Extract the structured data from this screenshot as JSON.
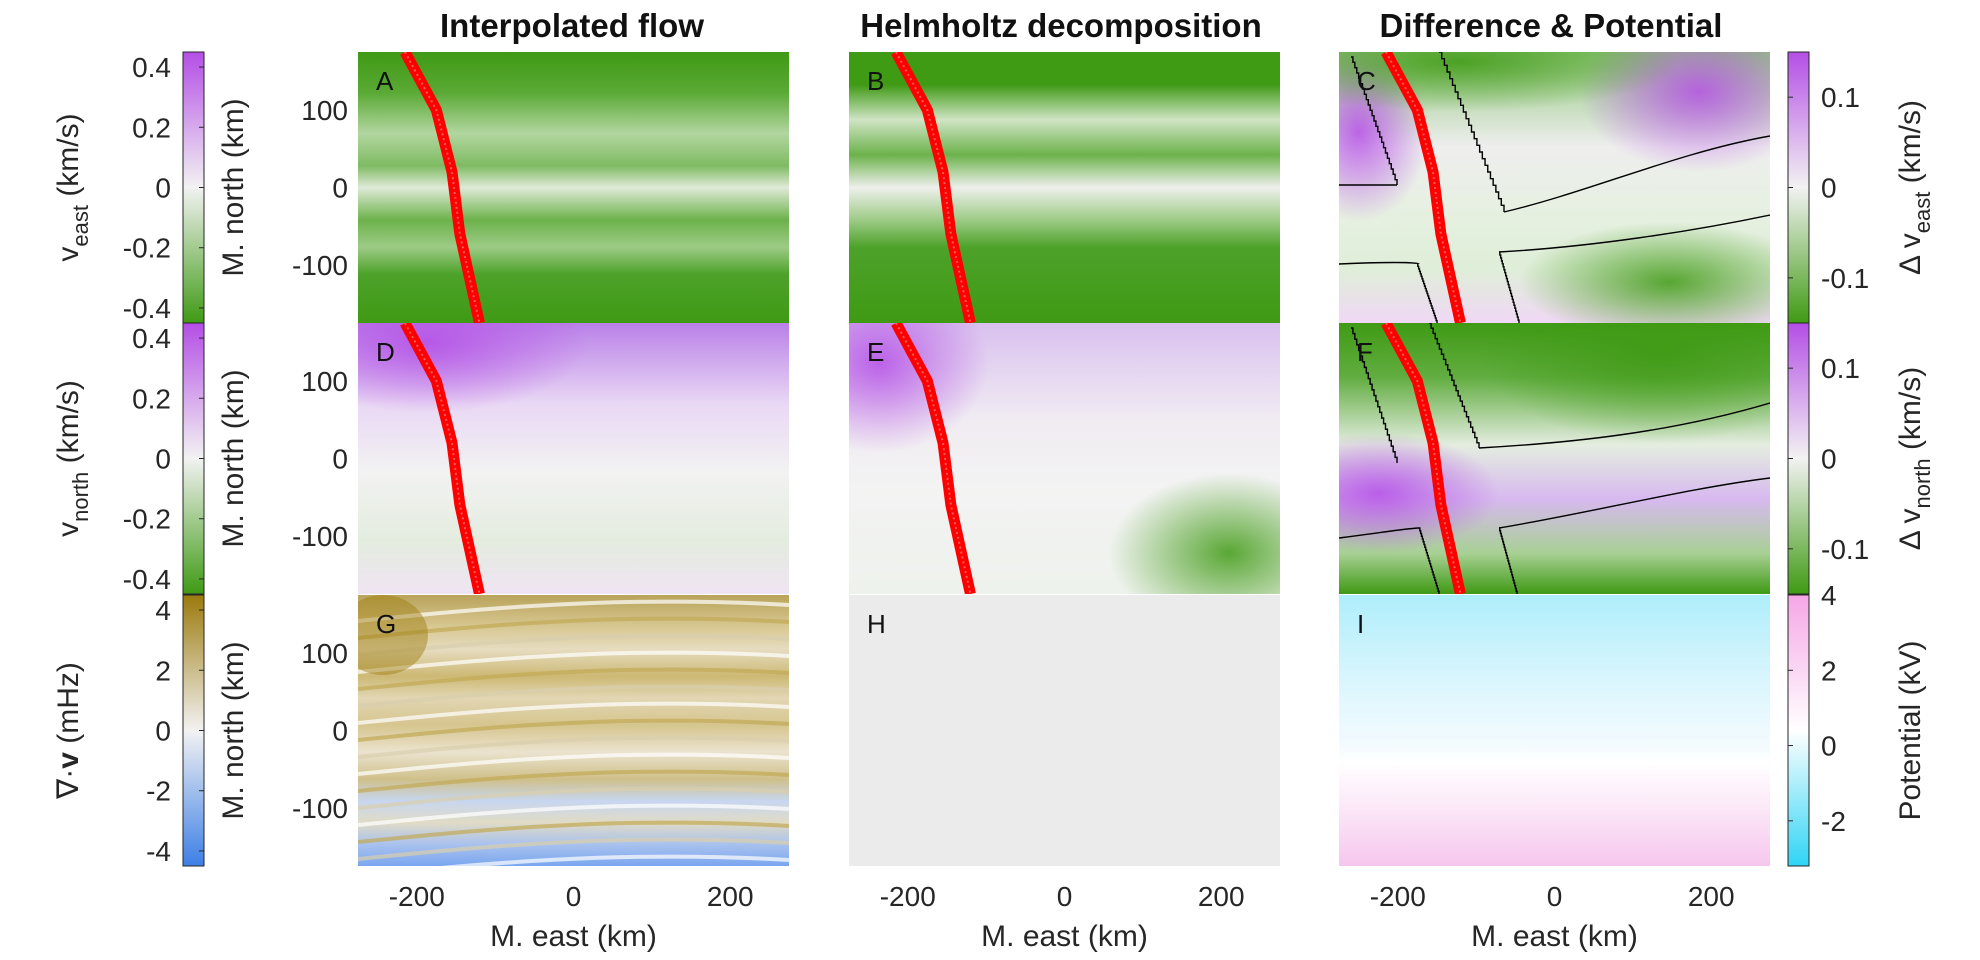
{
  "chart_data": {
    "type": "heatmap",
    "layout": "3x3 grid",
    "column_titles": [
      "Interpolated flow",
      "Helmholtz decomposition",
      "Difference & Potential"
    ],
    "panel_labels": [
      "A",
      "B",
      "C",
      "D",
      "E",
      "F",
      "G",
      "H",
      "I"
    ],
    "xlabel": "M. east (km)",
    "ylabel": "M. north (km)",
    "xlim": [
      -275,
      275
    ],
    "ylim": [
      -175,
      175
    ],
    "x_ticks": [
      "-200",
      "0",
      "200"
    ],
    "y_ticks": [
      "100",
      "0",
      "-100"
    ],
    "left_colorbars": [
      {
        "name": "v_east",
        "label_main": "v",
        "label_sub": "east",
        "label_unit": " (km/s)",
        "range": [
          -0.45,
          0.45
        ],
        "ticks": [
          "0.4",
          "0.2",
          "0",
          "-0.2",
          "-0.4"
        ],
        "tick_values": [
          0.4,
          0.2,
          0,
          -0.2,
          -0.4
        ],
        "colors": [
          "#3f9a14",
          "#f2f2f2",
          "#b44ee6"
        ]
      },
      {
        "name": "v_north",
        "label_main": "v",
        "label_sub": "north",
        "label_unit": " (km/s)",
        "range": [
          -0.45,
          0.45
        ],
        "ticks": [
          "0.4",
          "0.2",
          "0",
          "-0.2",
          "-0.4"
        ],
        "tick_values": [
          0.4,
          0.2,
          0,
          -0.2,
          -0.4
        ],
        "colors": [
          "#3f9a14",
          "#f2f2f2",
          "#b44ee6"
        ]
      },
      {
        "name": "divergence",
        "label_main": "∇·",
        "label_bold": "v",
        "label_unit": " (mHz)",
        "range": [
          -4.5,
          4.5
        ],
        "ticks": [
          "4",
          "2",
          "0",
          "-2",
          "-4"
        ],
        "tick_values": [
          4,
          2,
          0,
          -2,
          -4
        ],
        "colors": [
          "#3d7fe6",
          "#f2f2f2",
          "#9b7a0c"
        ]
      }
    ],
    "right_colorbars": [
      {
        "name": "delta_v_east",
        "label_main": "Δ v",
        "label_sub": "east",
        "label_unit": " (km/s)",
        "range": [
          -0.15,
          0.15
        ],
        "ticks": [
          "0.1",
          "0",
          "-0.1"
        ],
        "tick_values": [
          0.1,
          0,
          -0.1
        ],
        "colors": [
          "#3f9a14",
          "#f2f2f2",
          "#b44ee6"
        ]
      },
      {
        "name": "delta_v_north",
        "label_main": "Δ v",
        "label_sub": "north",
        "label_unit": " (km/s)",
        "range": [
          -0.15,
          0.15
        ],
        "ticks": [
          "0.1",
          "0",
          "-0.1"
        ],
        "tick_values": [
          0.1,
          0,
          -0.1
        ],
        "colors": [
          "#3f9a14",
          "#f2f2f2",
          "#b44ee6"
        ]
      },
      {
        "name": "potential",
        "label_main": "Potential",
        "label_unit": " (kV)",
        "range": [
          -3.2,
          4
        ],
        "ticks": [
          "4",
          "2",
          "0",
          "-2"
        ],
        "tick_values": [
          4,
          2,
          0,
          -2
        ],
        "colors": [
          "#2fd4f5",
          "#ffffff",
          "#f5a6e6"
        ]
      }
    ],
    "arc_track": {
      "color": "#ff0000",
      "description_points_km": [
        [
          -215,
          175
        ],
        [
          -175,
          100
        ],
        [
          -155,
          20
        ],
        [
          -145,
          -60
        ],
        [
          -120,
          -175
        ]
      ]
    },
    "contour_color": "#000000"
  }
}
